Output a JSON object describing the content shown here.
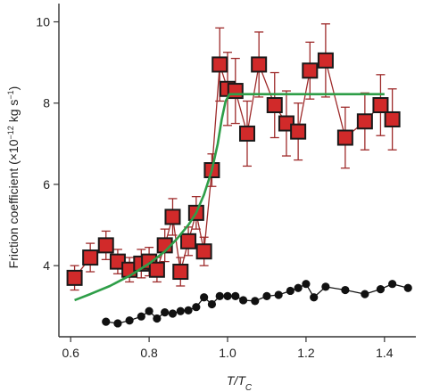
{
  "chart_data": {
    "type": "scatter",
    "xlabel": "T/T",
    "xlabel_sub": "C",
    "ylabel": "Friction coefficient (×10",
    "ylabel_sup": "−12",
    "ylabel_unit": " kg s",
    "ylabel_unit_sup": "−1",
    "ylabel_close": ")",
    "xlim": [
      0.57,
      1.48
    ],
    "ylim": [
      2.25,
      10.45
    ],
    "x_ticks": [
      0.6,
      0.8,
      1.0,
      1.2,
      1.4
    ],
    "x_tick_labels": [
      "0.6",
      "0.8",
      "1.0",
      "1.2",
      "1.4"
    ],
    "y_ticks": [
      4,
      6,
      8,
      10
    ],
    "y_tick_labels": [
      "4",
      "6",
      "8",
      "10"
    ],
    "colors": {
      "red_fill": "#d12a2a",
      "red_line": "#9e2b2b",
      "green": "#2e9e48",
      "black": "#111111",
      "axis": "#333333"
    },
    "series": [
      {
        "kind": "red-squares-with-errorbars",
        "x": [
          0.61,
          0.65,
          0.69,
          0.72,
          0.75,
          0.78,
          0.8,
          0.82,
          0.84,
          0.86,
          0.88,
          0.9,
          0.92,
          0.94,
          0.96,
          0.98,
          1.0,
          1.02,
          1.05,
          1.08,
          1.12,
          1.15,
          1.18,
          1.21,
          1.25,
          1.3,
          1.35,
          1.39,
          1.42
        ],
        "y": [
          3.7,
          4.2,
          4.5,
          4.1,
          3.9,
          4.05,
          4.1,
          3.9,
          4.5,
          5.2,
          3.85,
          4.6,
          5.3,
          4.35,
          6.35,
          8.95,
          8.35,
          8.3,
          7.25,
          8.95,
          7.95,
          7.5,
          7.3,
          8.8,
          9.05,
          7.15,
          7.55,
          7.95,
          7.6
        ],
        "err": [
          0.3,
          0.35,
          0.35,
          0.3,
          0.3,
          0.35,
          0.35,
          0.3,
          0.4,
          0.45,
          0.35,
          0.35,
          0.4,
          0.35,
          0.4,
          0.9,
          0.9,
          0.8,
          0.8,
          0.8,
          0.8,
          0.8,
          0.7,
          0.7,
          0.9,
          0.75,
          0.7,
          0.75,
          0.75
        ]
      },
      {
        "kind": "green-fit-line",
        "x": [
          0.61,
          0.65,
          0.7,
          0.75,
          0.8,
          0.84,
          0.87,
          0.9,
          0.92,
          0.94,
          0.96,
          0.975,
          0.985,
          0.995,
          1.005,
          1.02,
          1.05,
          1.1,
          1.2,
          1.3,
          1.35,
          1.4
        ],
        "y": [
          3.15,
          3.3,
          3.5,
          3.75,
          4.05,
          4.35,
          4.65,
          5.0,
          5.3,
          5.75,
          6.35,
          7.0,
          7.6,
          8.05,
          8.22,
          8.22,
          8.22,
          8.22,
          8.22,
          8.22,
          8.22,
          8.22
        ]
      },
      {
        "kind": "black-dots-line",
        "x": [
          0.69,
          0.72,
          0.75,
          0.78,
          0.8,
          0.82,
          0.84,
          0.86,
          0.88,
          0.9,
          0.92,
          0.94,
          0.96,
          0.98,
          1.0,
          1.02,
          1.04,
          1.07,
          1.1,
          1.13,
          1.16,
          1.18,
          1.2,
          1.22,
          1.25,
          1.3,
          1.35,
          1.39,
          1.42,
          1.46
        ],
        "y": [
          2.62,
          2.58,
          2.65,
          2.75,
          2.88,
          2.7,
          2.85,
          2.82,
          2.88,
          2.9,
          2.98,
          3.22,
          3.05,
          3.25,
          3.25,
          3.25,
          3.15,
          3.13,
          3.25,
          3.28,
          3.38,
          3.45,
          3.55,
          3.22,
          3.48,
          3.4,
          3.3,
          3.42,
          3.55,
          3.45
        ]
      }
    ]
  }
}
